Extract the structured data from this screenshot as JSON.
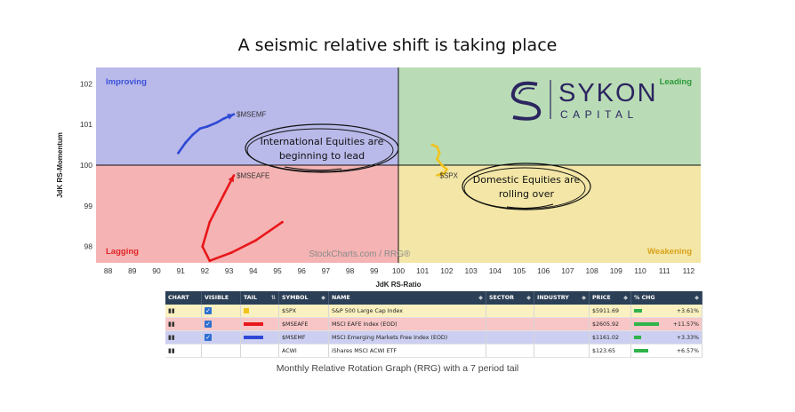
{
  "headline": "A seismic relative shift is taking place",
  "caption": "Monthly Relative Rotation Graph (RRG) with a 7 period tail",
  "colors": {
    "improving": "#b9b9ea",
    "leading": "#b9dcb6",
    "lagging": "#f5b3b3",
    "weakening": "#f3e6a6",
    "spx": "#f2c21c",
    "msci_eafe": "#e8171b",
    "msci_em": "#2f49d6"
  },
  "chart_data": {
    "type": "scatter",
    "subtype": "relative-rotation-graph",
    "xlabel": "JdK RS-Ratio",
    "ylabel": "JdK RS-Momentum",
    "xlim": [
      87.5,
      112.5
    ],
    "ylim": [
      97.6,
      102.4
    ],
    "x_ticks": [
      88,
      89,
      90,
      91,
      92,
      93,
      94,
      95,
      96,
      97,
      98,
      99,
      100,
      101,
      102,
      103,
      104,
      105,
      106,
      107,
      108,
      109,
      110,
      111,
      112
    ],
    "y_ticks": [
      98,
      99,
      100,
      101,
      102
    ],
    "center": [
      100,
      100
    ],
    "quadrants": [
      "Improving",
      "Leading",
      "Lagging",
      "Weakening"
    ],
    "watermark": "StockCharts.com / RRG®",
    "series": [
      {
        "name": "$MSEMF",
        "color": "#2f49d6",
        "x": [
          90.9,
          91.2,
          91.5,
          91.8,
          92.1,
          92.5,
          92.8,
          93.2
        ],
        "y": [
          100.3,
          100.55,
          100.75,
          100.9,
          100.95,
          101.05,
          101.15,
          101.25
        ]
      },
      {
        "name": "$MSEAFE",
        "color": "#e8171b",
        "x": [
          95.2,
          94.1,
          93.1,
          92.2,
          91.9,
          92.2,
          92.8,
          93.2
        ],
        "y": [
          98.6,
          98.15,
          97.85,
          97.65,
          98.0,
          98.6,
          99.3,
          99.75
        ]
      },
      {
        "name": "$SPX",
        "color": "#f2c21c",
        "x": [
          101.4,
          101.6,
          101.7,
          101.6,
          101.8,
          102.0,
          101.9,
          101.6
        ],
        "y": [
          100.5,
          100.45,
          100.3,
          100.15,
          100.0,
          99.9,
          99.8,
          99.75
        ]
      }
    ],
    "annotations": [
      "International Equities are beginning to lead",
      "Domestic Equities are rolling over"
    ]
  },
  "logo": {
    "name": "SYKON",
    "sub": "CAPITAL"
  },
  "table": {
    "headers": [
      "CHART",
      "VISIBLE",
      "TAIL",
      "SYMBOL",
      "NAME",
      "SECTOR",
      "INDUSTRY",
      "PRICE",
      "% CHG"
    ],
    "rows": [
      {
        "symbol": "$SPX",
        "name": "S&P 500 Large Cap Index",
        "sector": "",
        "industry": "",
        "price": "$5911.69",
        "chg": "+3.61%",
        "chg_value": 3.61,
        "visible": true,
        "tail_color": "#f2c21c",
        "row_bg": "#fbf1c0"
      },
      {
        "symbol": "$MSEAFE",
        "name": "MSCI EAFE Index (EOD)",
        "sector": "",
        "industry": "",
        "price": "$2605.92",
        "chg": "+11.57%",
        "chg_value": 11.57,
        "visible": true,
        "tail_color": "#e8171b",
        "row_bg": "#f8c6c6"
      },
      {
        "symbol": "$MSEMF",
        "name": "MSCI Emerging Markets Free Index (EOD)",
        "sector": "",
        "industry": "",
        "price": "$1161.02",
        "chg": "+3.33%",
        "chg_value": 3.33,
        "visible": true,
        "tail_color": "#2f49d6",
        "row_bg": "#cccff2"
      },
      {
        "symbol": "ACWI",
        "name": "iShares MSCI ACWI ETF",
        "sector": "",
        "industry": "",
        "price": "$123.65",
        "chg": "+6.57%",
        "chg_value": 6.57,
        "visible": false,
        "tail_color": "",
        "row_bg": "#ffffff"
      }
    ]
  }
}
